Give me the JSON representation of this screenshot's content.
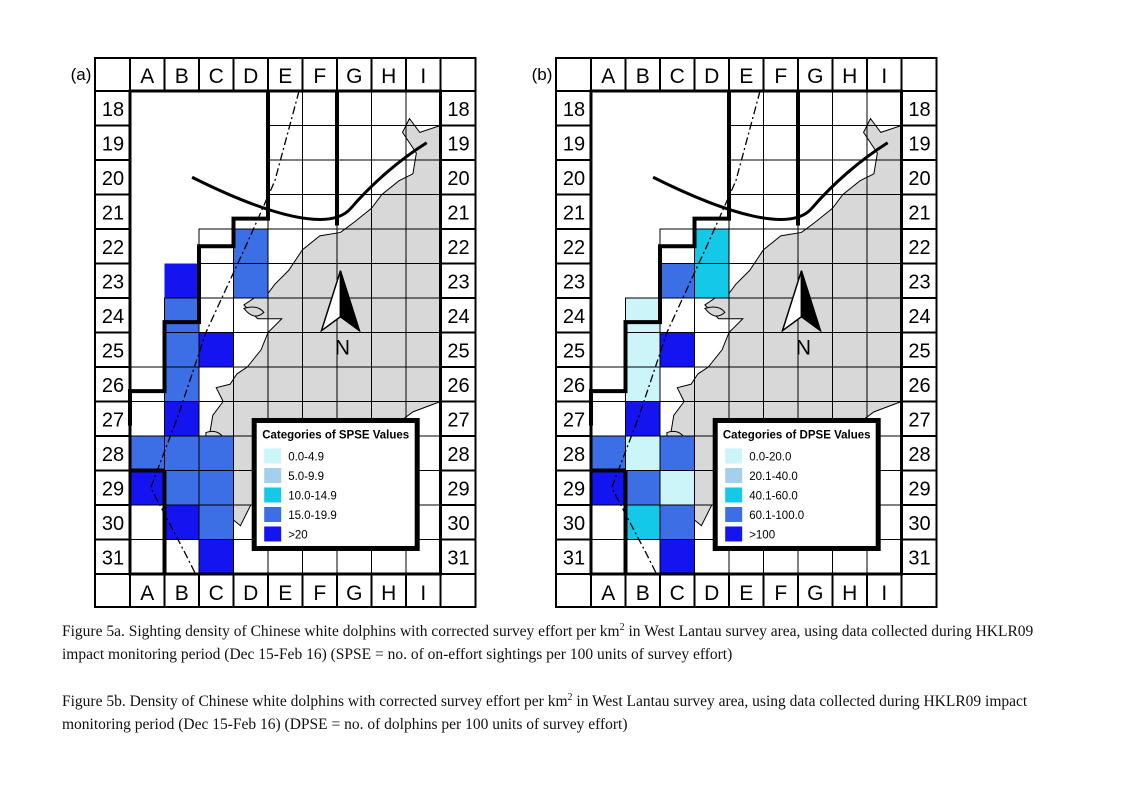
{
  "figure": {
    "panels": [
      {
        "tag": "(a)",
        "legend_title": "Categories of SPSE Values",
        "legend_items": [
          {
            "label": "0.0-4.9",
            "color": "#ccf5fa"
          },
          {
            "label": "5.0-9.9",
            "color": "#a4d0ee"
          },
          {
            "label": "10.0-14.9",
            "color": "#14c8e8"
          },
          {
            "label": "15.0-19.9",
            "color": "#3c6ee6"
          },
          {
            "label": ">20",
            "color": "#1414f0"
          }
        ],
        "cells": [
          {
            "col": "D",
            "row": 22,
            "cat": 3
          },
          {
            "col": "B",
            "row": 23,
            "cat": 4
          },
          {
            "col": "D",
            "row": 23,
            "cat": 3
          },
          {
            "col": "B",
            "row": 24,
            "cat": 3
          },
          {
            "col": "B",
            "row": 25,
            "cat": 3
          },
          {
            "col": "C",
            "row": 25,
            "cat": 4
          },
          {
            "col": "B",
            "row": 26,
            "cat": 3
          },
          {
            "col": "B",
            "row": 27,
            "cat": 4
          },
          {
            "col": "A",
            "row": 28,
            "cat": 3
          },
          {
            "col": "B",
            "row": 28,
            "cat": 3
          },
          {
            "col": "C",
            "row": 28,
            "cat": 3
          },
          {
            "col": "A",
            "row": 29,
            "cat": 4
          },
          {
            "col": "B",
            "row": 29,
            "cat": 3
          },
          {
            "col": "C",
            "row": 29,
            "cat": 3
          },
          {
            "col": "B",
            "row": 30,
            "cat": 4
          },
          {
            "col": "C",
            "row": 30,
            "cat": 3
          },
          {
            "col": "C",
            "row": 31,
            "cat": 4
          }
        ]
      },
      {
        "tag": "(b)",
        "legend_title": "Categories of DPSE Values",
        "legend_items": [
          {
            "label": "0.0-20.0",
            "color": "#ccf5fa"
          },
          {
            "label": "20.1-40.0",
            "color": "#a4d0ee"
          },
          {
            "label": "40.1-60.0",
            "color": "#14c8e8"
          },
          {
            "label": "60.1-100.0",
            "color": "#3c6ee6"
          },
          {
            "label": ">100",
            "color": "#1414f0"
          }
        ],
        "cells": [
          {
            "col": "D",
            "row": 22,
            "cat": 2
          },
          {
            "col": "C",
            "row": 23,
            "cat": 3
          },
          {
            "col": "D",
            "row": 23,
            "cat": 2
          },
          {
            "col": "B",
            "row": 24,
            "cat": 0
          },
          {
            "col": "B",
            "row": 25,
            "cat": 0
          },
          {
            "col": "C",
            "row": 25,
            "cat": 4
          },
          {
            "col": "B",
            "row": 26,
            "cat": 0
          },
          {
            "col": "B",
            "row": 27,
            "cat": 4
          },
          {
            "col": "A",
            "row": 28,
            "cat": 3
          },
          {
            "col": "B",
            "row": 28,
            "cat": 0
          },
          {
            "col": "C",
            "row": 28,
            "cat": 3
          },
          {
            "col": "A",
            "row": 29,
            "cat": 4
          },
          {
            "col": "B",
            "row": 29,
            "cat": 3
          },
          {
            "col": "C",
            "row": 29,
            "cat": 0
          },
          {
            "col": "B",
            "row": 30,
            "cat": 2
          },
          {
            "col": "C",
            "row": 30,
            "cat": 3
          },
          {
            "col": "C",
            "row": 31,
            "cat": 4
          }
        ]
      }
    ],
    "columns": [
      "A",
      "B",
      "C",
      "D",
      "E",
      "F",
      "G",
      "H",
      "I"
    ],
    "rows": [
      "18",
      "19",
      "20",
      "21",
      "22",
      "23",
      "24",
      "25",
      "26",
      "27",
      "28",
      "29",
      "30",
      "31"
    ],
    "north_label": "N",
    "colors": {
      "land": "#d8d8d8",
      "grid": "#000000"
    }
  },
  "captions": {
    "a_pre": "Figure 5a.  Sighting density of Chinese white dolphins with corrected survey effort per km",
    "a_sup": "2",
    "a_post": " in West Lantau survey area, using data collected during HKLR09 impact monitoring period (Dec 15-Feb 16) (SPSE = no. of on-effort sightings per 100 units of survey effort)",
    "b_pre": "Figure 5b.  Density of Chinese white dolphins with corrected survey effort per km",
    "b_sup": "2",
    "b_post": " in West Lantau survey area, using data collected during HKLR09 impact monitoring period (Dec 15-Feb 16) (DPSE = no. of dolphins per 100 units of survey effort)"
  }
}
